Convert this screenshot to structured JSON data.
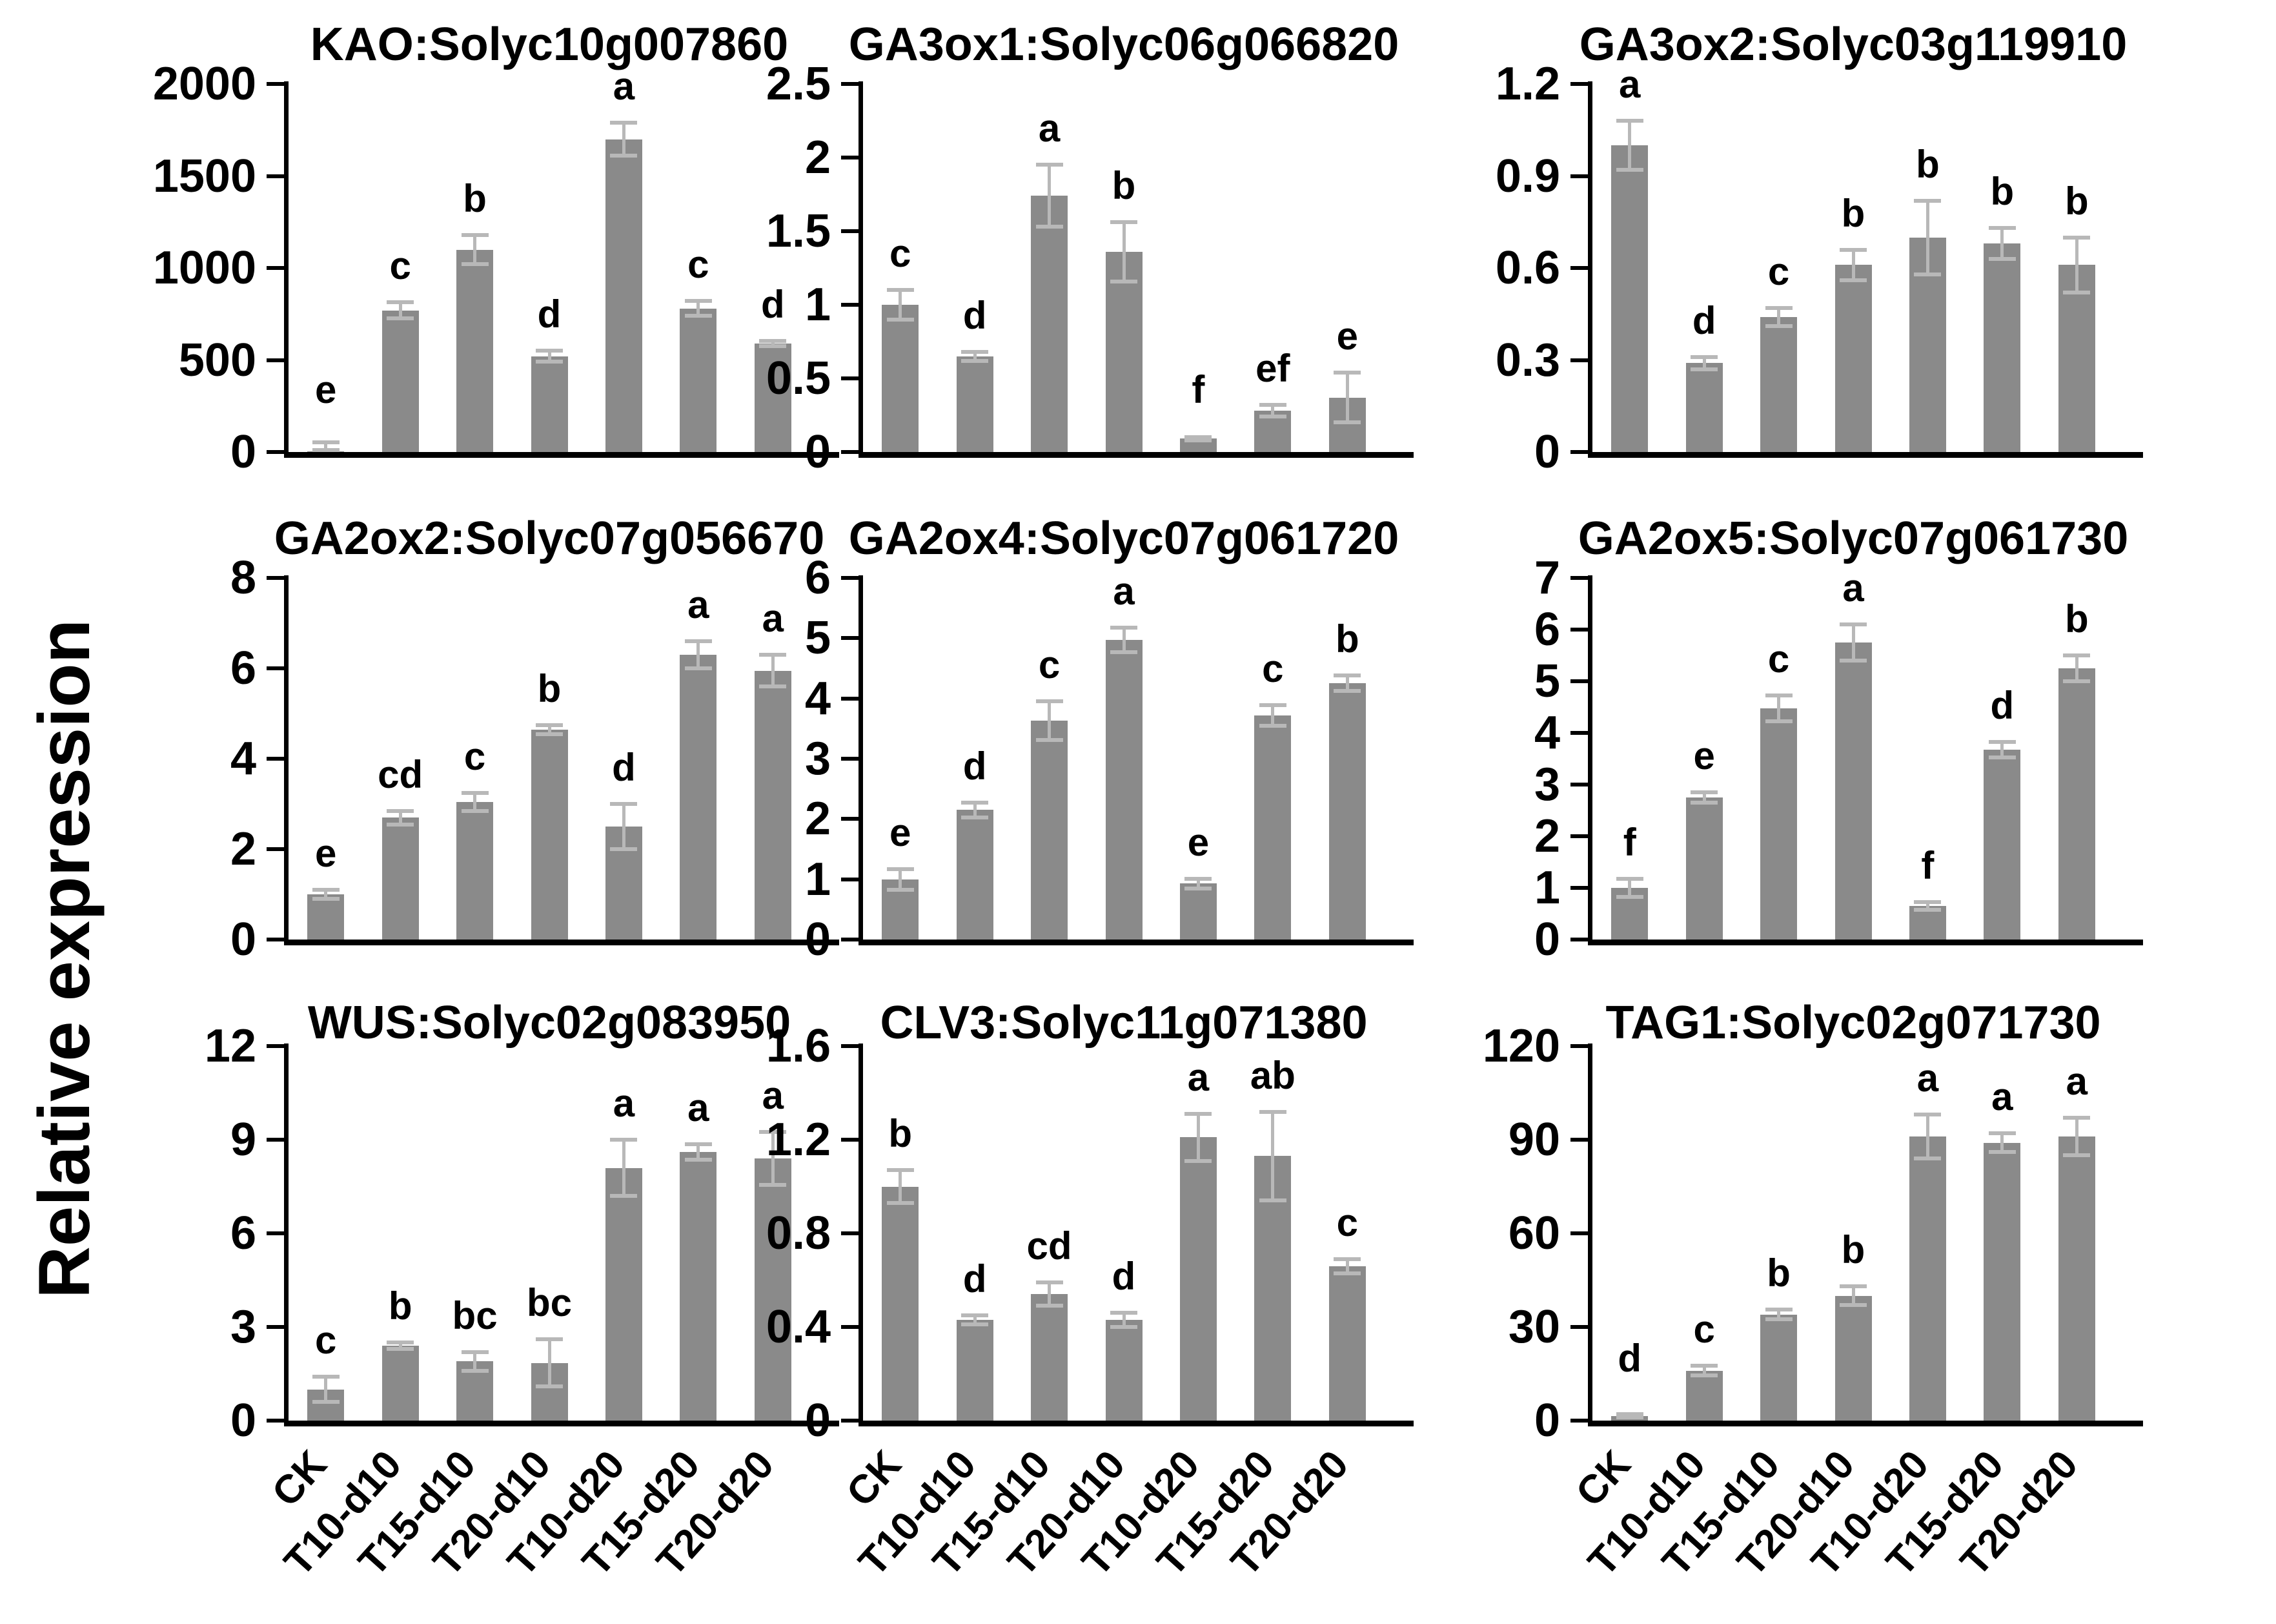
{
  "figure": {
    "y_axis_label": "Relative expression",
    "categories": [
      "CK",
      "T10-d10",
      "T15-d10",
      "T20-d10",
      "T10-d20",
      "T15-d20",
      "T20-d20"
    ],
    "bar_color": "#8a8a8a",
    "error_bar_color": "#b8b8b8",
    "axis_color": "#000000",
    "background_color": "#ffffff"
  },
  "chart_data": [
    {
      "type": "bar",
      "id": "kao",
      "title": "KAO:Solyc10g007860",
      "xlabel": "",
      "ylabel": "Relative expression",
      "ylim": [
        0,
        2000
      ],
      "yticks": [
        0,
        500,
        1000,
        1500,
        2000
      ],
      "grid": false,
      "categories": [
        "CK",
        "T10-d10",
        "T15-d10",
        "T20-d10",
        "T10-d20",
        "T15-d20",
        "T20-d20"
      ],
      "values": [
        2,
        770,
        1100,
        520,
        1700,
        780,
        590
      ],
      "errors": [
        50,
        45,
        80,
        30,
        90,
        40,
        15
      ],
      "letters": [
        "e",
        "c",
        "b",
        "d",
        "a",
        "c",
        "d"
      ],
      "x_labels_visible": false
    },
    {
      "type": "bar",
      "id": "ga3ox1",
      "title": "GA3ox1:Solyc06g066820",
      "xlabel": "",
      "ylabel": "Relative expression",
      "ylim": [
        0,
        2.5
      ],
      "yticks": [
        0,
        0.5,
        1,
        1.5,
        2,
        2.5
      ],
      "grid": false,
      "categories": [
        "CK",
        "T10-d10",
        "T15-d10",
        "T20-d10",
        "T10-d20",
        "T15-d20",
        "T20-d20"
      ],
      "values": [
        1.0,
        0.65,
        1.74,
        1.36,
        0.09,
        0.28,
        0.37
      ],
      "errors": [
        0.1,
        0.03,
        0.21,
        0.2,
        0.01,
        0.04,
        0.17
      ],
      "letters": [
        "c",
        "d",
        "a",
        "b",
        "f",
        "ef",
        "e"
      ],
      "x_labels_visible": false
    },
    {
      "type": "bar",
      "id": "ga3ox2",
      "title": "GA3ox2:Solyc03g119910",
      "xlabel": "",
      "ylabel": "Relative expression",
      "ylim": [
        0,
        1.2
      ],
      "yticks": [
        0,
        0.3,
        0.6,
        0.9,
        1.2
      ],
      "grid": false,
      "categories": [
        "CK",
        "T10-d10",
        "T15-d10",
        "T20-d10",
        "T10-d20",
        "T15-d20",
        "T20-d20"
      ],
      "values": [
        1.0,
        0.29,
        0.44,
        0.61,
        0.7,
        0.68,
        0.61
      ],
      "errors": [
        0.08,
        0.02,
        0.03,
        0.05,
        0.12,
        0.05,
        0.09
      ],
      "letters": [
        "a",
        "d",
        "c",
        "b",
        "b",
        "b",
        "b"
      ],
      "x_labels_visible": false
    },
    {
      "type": "bar",
      "id": "ga2ox2",
      "title": "GA2ox2:Solyc07g056670",
      "xlabel": "",
      "ylabel": "Relative expression",
      "ylim": [
        0,
        8
      ],
      "yticks": [
        0,
        2,
        4,
        6,
        8
      ],
      "grid": false,
      "categories": [
        "CK",
        "T10-d10",
        "T15-d10",
        "T20-d10",
        "T10-d20",
        "T15-d20",
        "T20-d20"
      ],
      "values": [
        1.0,
        2.7,
        3.05,
        4.65,
        2.5,
        6.3,
        5.95
      ],
      "errors": [
        0.1,
        0.15,
        0.2,
        0.1,
        0.5,
        0.3,
        0.35
      ],
      "letters": [
        "e",
        "cd",
        "c",
        "b",
        "d",
        "a",
        "a"
      ],
      "x_labels_visible": false
    },
    {
      "type": "bar",
      "id": "ga2ox4",
      "title": "GA2ox4:Solyc07g061720",
      "xlabel": "",
      "ylabel": "Relative expression",
      "ylim": [
        0,
        6
      ],
      "yticks": [
        0,
        1,
        2,
        3,
        4,
        5,
        6
      ],
      "grid": false,
      "categories": [
        "CK",
        "T10-d10",
        "T15-d10",
        "T20-d10",
        "T10-d20",
        "T15-d20",
        "T20-d20"
      ],
      "values": [
        1.0,
        2.15,
        3.63,
        4.97,
        0.93,
        3.72,
        4.25
      ],
      "errors": [
        0.17,
        0.12,
        0.32,
        0.2,
        0.08,
        0.17,
        0.13
      ],
      "letters": [
        "e",
        "d",
        "c",
        "a",
        "e",
        "c",
        "b"
      ],
      "x_labels_visible": false
    },
    {
      "type": "bar",
      "id": "ga2ox5",
      "title": "GA2ox5:Solyc07g061730",
      "xlabel": "",
      "ylabel": "Relative expression",
      "ylim": [
        0,
        7
      ],
      "yticks": [
        0,
        1,
        2,
        3,
        4,
        5,
        6,
        7
      ],
      "grid": false,
      "categories": [
        "CK",
        "T10-d10",
        "T15-d10",
        "T20-d10",
        "T10-d20",
        "T15-d20",
        "T20-d20"
      ],
      "values": [
        1.0,
        2.75,
        4.48,
        5.75,
        0.65,
        3.67,
        5.25
      ],
      "errors": [
        0.18,
        0.1,
        0.25,
        0.35,
        0.07,
        0.15,
        0.25
      ],
      "letters": [
        "f",
        "e",
        "c",
        "a",
        "f",
        "d",
        "b"
      ],
      "x_labels_visible": false
    },
    {
      "type": "bar",
      "id": "wus",
      "title": "WUS:Solyc02g083950",
      "xlabel": "",
      "ylabel": "Relative expression",
      "ylim": [
        0,
        12
      ],
      "yticks": [
        0,
        3,
        6,
        9,
        12
      ],
      "grid": false,
      "categories": [
        "CK",
        "T10-d10",
        "T15-d10",
        "T20-d10",
        "T10-d20",
        "T15-d20",
        "T20-d20"
      ],
      "values": [
        1.0,
        2.4,
        1.9,
        1.85,
        8.1,
        8.6,
        8.4
      ],
      "errors": [
        0.4,
        0.1,
        0.3,
        0.75,
        0.9,
        0.25,
        0.85
      ],
      "letters": [
        "c",
        "b",
        "bc",
        "bc",
        "a",
        "a",
        "a"
      ],
      "x_labels_visible": true
    },
    {
      "type": "bar",
      "id": "clv3",
      "title": "CLV3:Solyc11g071380",
      "xlabel": "",
      "ylabel": "Relative expression",
      "ylim": [
        0,
        1.6
      ],
      "yticks": [
        0,
        0.4,
        0.8,
        1.2,
        1.6
      ],
      "grid": false,
      "categories": [
        "CK",
        "T10-d10",
        "T15-d10",
        "T20-d10",
        "T10-d20",
        "T15-d20",
        "T20-d20"
      ],
      "values": [
        1.0,
        0.43,
        0.54,
        0.43,
        1.21,
        1.13,
        0.66
      ],
      "errors": [
        0.07,
        0.02,
        0.05,
        0.03,
        0.1,
        0.19,
        0.03
      ],
      "letters": [
        "b",
        "d",
        "cd",
        "d",
        "a",
        "ab",
        "c"
      ],
      "x_labels_visible": true
    },
    {
      "type": "bar",
      "id": "tag1",
      "title": "TAG1:Solyc02g071730",
      "xlabel": "",
      "ylabel": "Relative expression",
      "ylim": [
        0,
        120
      ],
      "yticks": [
        0,
        30,
        60,
        90,
        120
      ],
      "grid": false,
      "categories": [
        "CK",
        "T10-d10",
        "T15-d10",
        "T20-d10",
        "T10-d20",
        "T15-d20",
        "T20-d20"
      ],
      "values": [
        1.5,
        16,
        34,
        40,
        91,
        89,
        91
      ],
      "errors": [
        0.5,
        1.5,
        1.5,
        3,
        7,
        3,
        6
      ],
      "letters": [
        "d",
        "c",
        "b",
        "b",
        "a",
        "a",
        "a"
      ],
      "x_labels_visible": true
    }
  ]
}
